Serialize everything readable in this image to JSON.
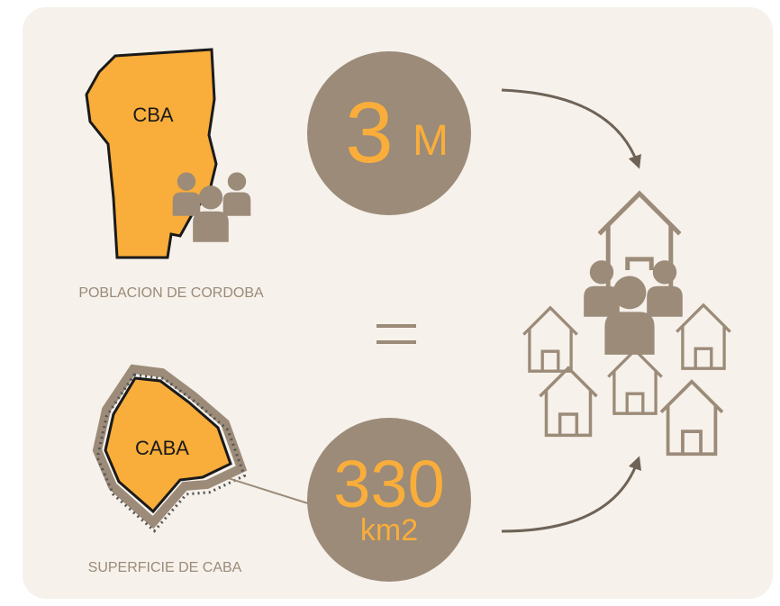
{
  "top": {
    "map_label": "CBA",
    "caption": "POBLACION DE CORDOBA",
    "number": 3,
    "unit": "M"
  },
  "bottom": {
    "map_label": "CABA",
    "caption": "SUPERFICIE DE CABA",
    "number": 330,
    "unit": "km2"
  }
}
